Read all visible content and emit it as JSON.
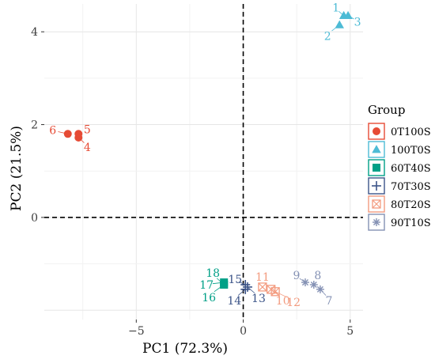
{
  "chart_data": {
    "type": "scatter",
    "title": "",
    "xlabel": "PC1 (72.3%)",
    "ylabel": "PC2 (21.5%)",
    "xlim": [
      -9.3,
      5.6
    ],
    "ylim": [
      -2.2,
      4.6
    ],
    "x_ticks": [
      -5,
      0,
      5
    ],
    "y_ticks": [
      0,
      2,
      4
    ],
    "grid": true,
    "reference_lines": {
      "x": 0,
      "y": 0,
      "style": "dashed"
    },
    "legend": {
      "title": "Group",
      "position": "right"
    },
    "series": [
      {
        "name": "0T100S",
        "color": "#e64b35",
        "marker": "circle",
        "points": [
          {
            "label": "4",
            "x": -7.7,
            "y": 1.72
          },
          {
            "label": "5",
            "x": -7.7,
            "y": 1.8
          },
          {
            "label": "6",
            "x": -8.2,
            "y": 1.8
          }
        ]
      },
      {
        "name": "100T0S",
        "color": "#4dbbd5",
        "marker": "triangle",
        "points": [
          {
            "label": "1",
            "x": 4.7,
            "y": 4.35
          },
          {
            "label": "2",
            "x": 4.5,
            "y": 4.15
          },
          {
            "label": "3",
            "x": 4.9,
            "y": 4.35
          }
        ]
      },
      {
        "name": "60T40S",
        "color": "#00a087",
        "marker": "square",
        "points": [
          {
            "label": "16",
            "x": -0.9,
            "y": -1.45
          },
          {
            "label": "17",
            "x": -0.9,
            "y": -1.4
          },
          {
            "label": "18",
            "x": -0.9,
            "y": -1.45
          }
        ]
      },
      {
        "name": "70T30S",
        "color": "#3c5488",
        "marker": "plus",
        "points": [
          {
            "label": "13",
            "x": 0.2,
            "y": -1.5
          },
          {
            "label": "14",
            "x": 0.1,
            "y": -1.55
          },
          {
            "label": "15",
            "x": 0.1,
            "y": -1.45
          }
        ]
      },
      {
        "name": "80T20S",
        "color": "#f39b7f",
        "marker": "square-x",
        "points": [
          {
            "label": "10",
            "x": 1.3,
            "y": -1.55
          },
          {
            "label": "11",
            "x": 0.9,
            "y": -1.5
          },
          {
            "label": "12",
            "x": 1.5,
            "y": -1.6
          }
        ]
      },
      {
        "name": "90T10S",
        "color": "#8491b4",
        "marker": "asterisk",
        "points": [
          {
            "label": "7",
            "x": 3.6,
            "y": -1.55
          },
          {
            "label": "8",
            "x": 3.3,
            "y": -1.45
          },
          {
            "label": "9",
            "x": 2.9,
            "y": -1.4
          }
        ]
      }
    ]
  }
}
